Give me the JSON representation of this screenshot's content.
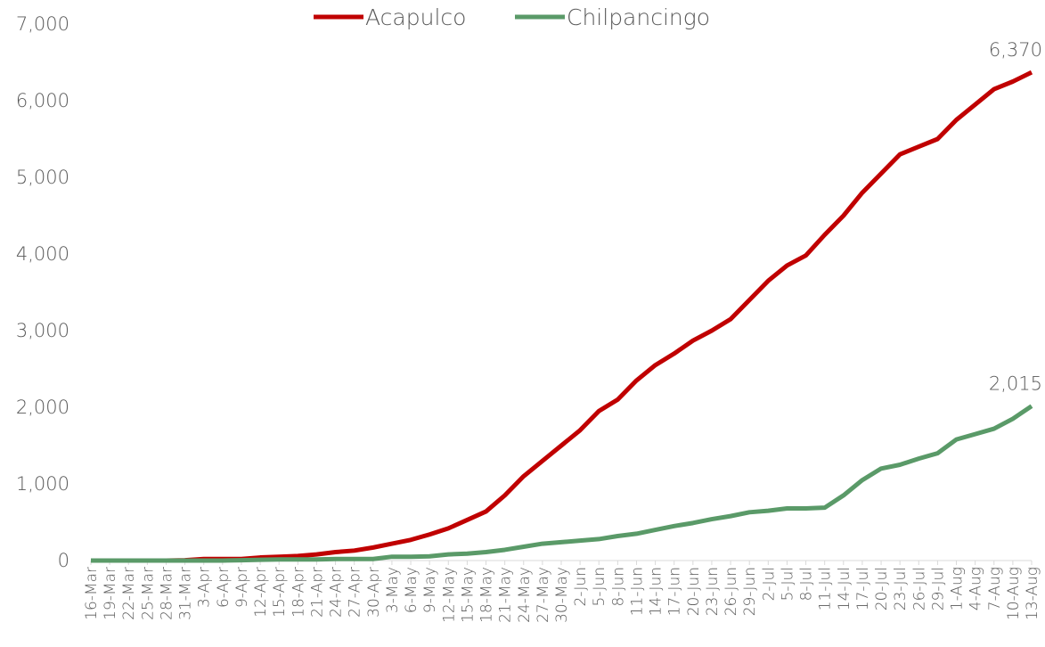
{
  "chart_data": {
    "type": "line",
    "categories": [
      "16-Mar",
      "19-Mar",
      "22-Mar",
      "25-Mar",
      "28-Mar",
      "31-Mar",
      "3-Apr",
      "6-Apr",
      "9-Apr",
      "12-Apr",
      "15-Apr",
      "18-Apr",
      "21-Apr",
      "24-Apr",
      "27-Apr",
      "30-Apr",
      "3-May",
      "6-May",
      "9-May",
      "12-May",
      "15-May",
      "18-May",
      "21-May",
      "24-May",
      "27-May",
      "30-May",
      "2-Jun",
      "5-Jun",
      "8-Jun",
      "11-Jun",
      "14-Jun",
      "17-Jun",
      "20-Jun",
      "23-Jun",
      "26-Jun",
      "29-Jun",
      "2-Jul",
      "5-Jul",
      "8-Jul",
      "11-Jul",
      "14-Jul",
      "17-Jul",
      "20-Jul",
      "23-Jul",
      "26-Jul",
      "29-Jul",
      "1-Aug",
      "4-Aug",
      "7-Aug",
      "10-Aug",
      "13-Aug"
    ],
    "series": [
      {
        "name": "Acapulco",
        "color": "#c00000",
        "values": [
          0,
          0,
          0,
          0,
          0,
          5,
          20,
          20,
          20,
          40,
          50,
          60,
          80,
          110,
          130,
          170,
          220,
          270,
          340,
          420,
          530,
          640,
          850,
          1100,
          1300,
          1500,
          1700,
          1950,
          2100,
          2350,
          2550,
          2700,
          2870,
          3000,
          3150,
          3400,
          3650,
          3850,
          3980,
          4250,
          4500,
          4800,
          5050,
          5300,
          5400,
          5500,
          5750,
          5950,
          6150,
          6250,
          6370
        ]
      },
      {
        "name": "Chilpancingo",
        "color": "#5a9a68",
        "values": [
          0,
          0,
          0,
          0,
          0,
          0,
          0,
          0,
          5,
          10,
          15,
          15,
          15,
          20,
          20,
          20,
          50,
          50,
          55,
          80,
          90,
          110,
          140,
          180,
          220,
          240,
          260,
          280,
          320,
          350,
          400,
          450,
          490,
          540,
          580,
          630,
          650,
          680,
          680,
          690,
          850,
          1050,
          1200,
          1250,
          1330,
          1400,
          1580,
          1650,
          1720,
          1850,
          2015
        ]
      }
    ],
    "end_labels": [
      "6,370",
      "2,015"
    ],
    "ylim": [
      0,
      7000
    ],
    "yticks": [
      0,
      {
        "value": 1000,
        "label": "1,000"
      },
      {
        "value": 2000,
        "label": "2,000"
      },
      {
        "value": 3000,
        "label": "3,000"
      },
      {
        "value": 4000,
        "label": "4,000"
      },
      {
        "value": 5000,
        "label": "5,000"
      },
      {
        "value": 6000,
        "label": "6,000"
      },
      {
        "value": 7000,
        "label": "7,000"
      }
    ],
    "legend": "top",
    "grid": false
  }
}
